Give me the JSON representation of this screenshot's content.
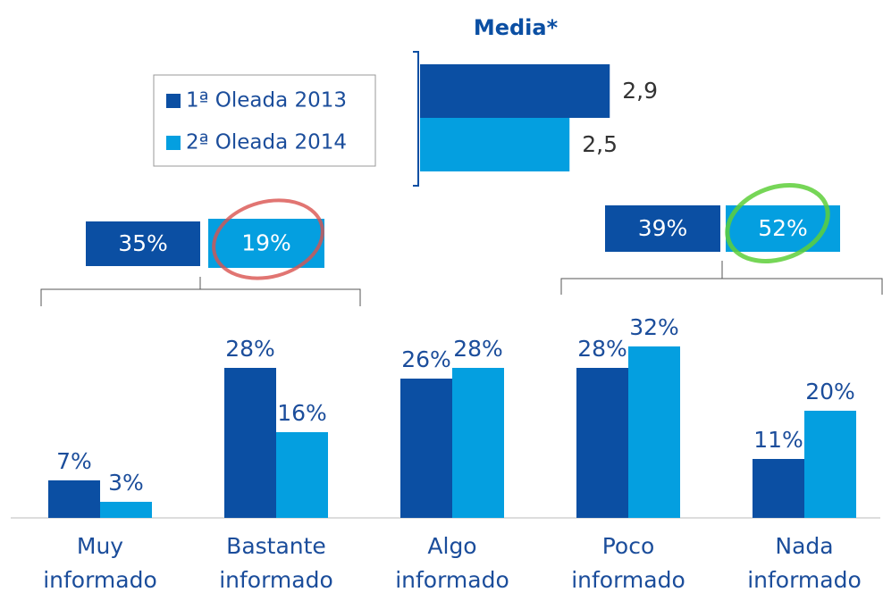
{
  "chart_data": [
    {
      "type": "bar",
      "categories": [
        "Muy informado",
        "Bastante informado",
        "Algo informado",
        "Poco informado",
        "Nada informado"
      ],
      "series": [
        {
          "name": "1ª Oleada 2013",
          "color": "#0b4fa3",
          "values": [
            7,
            28,
            26,
            28,
            11
          ],
          "value_labels": [
            "7%",
            "28%",
            "26%",
            "28%",
            "11%"
          ]
        },
        {
          "name": "2ª Oleada 2014",
          "color": "#049fe0",
          "values": [
            3,
            16,
            28,
            32,
            20
          ],
          "value_labels": [
            "3%",
            "16%",
            "28%",
            "32%",
            "20%"
          ]
        }
      ],
      "annotations": [
        {
          "values": [
            35,
            19
          ],
          "value_labels": [
            "35%",
            "19%"
          ]
        },
        {
          "values": [
            39,
            52
          ],
          "value_labels": [
            "39%",
            "52%"
          ]
        }
      ]
    },
    {
      "type": "hbar",
      "title": "Media*",
      "values": [
        2.9,
        2.5
      ],
      "value_labels": [
        "2,9",
        "2,5"
      ]
    }
  ]
}
